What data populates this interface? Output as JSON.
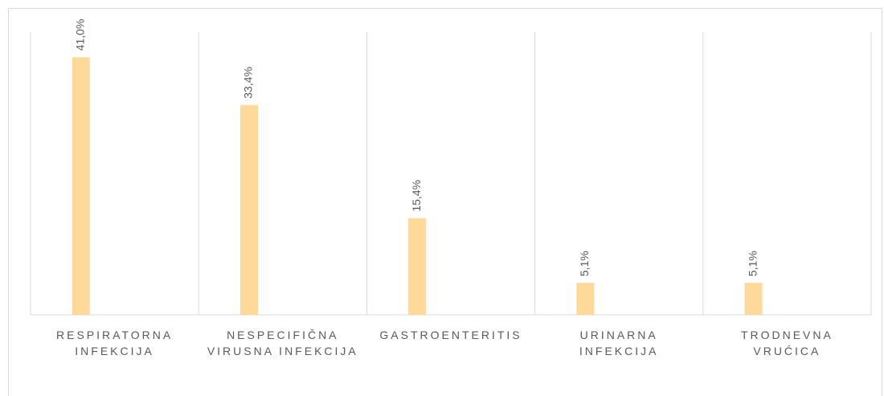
{
  "chart_data": {
    "type": "bar",
    "categories": [
      "RESPIRATORNA INFEKCIJA",
      "NESPECIFIČNA VIRUSNA INFEKCIJA",
      "GASTROENTERITIS",
      "URINARNA INFEKCIJA",
      "TRODNEVNA VRUĆICA"
    ],
    "values": [
      41.0,
      33.4,
      15.4,
      5.1,
      5.1
    ],
    "value_labels": [
      "41,0%",
      "33,4%",
      "15,4%",
      "5,1%",
      "5,1%"
    ],
    "color": "#ffd999",
    "ylim": [
      0,
      45
    ]
  }
}
